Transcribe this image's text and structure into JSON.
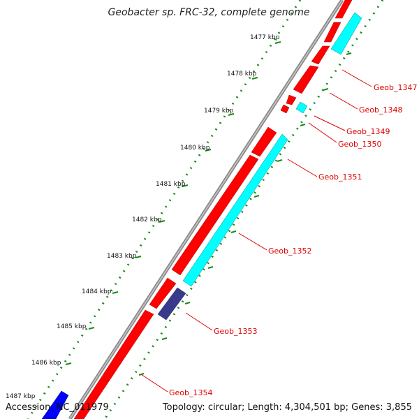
{
  "title": "Geobacter sp. FRC-32, complete genome",
  "footer": {
    "accession": "Accession: NC_011979",
    "summary": "Topology: circular; Length: 4,304,501 bp; Genes: 3,855"
  },
  "colors": {
    "forward_gene": "#ff0000",
    "reverse_gene_a": "#00ffff",
    "reverse_gene_b": "#3a3a8c",
    "edge_gene": "#0000ff",
    "backbone": "#8a8a8a",
    "tick_green": "#1a8a1a",
    "label_red": "#e00000"
  },
  "kbp_ticks": [
    {
      "label": "1477 kbp"
    },
    {
      "label": "1478 kbp"
    },
    {
      "label": "1479 kbp"
    },
    {
      "label": "1480 kbp"
    },
    {
      "label": "1481 kbp"
    },
    {
      "label": "1482 kbp"
    },
    {
      "label": "1483 kbp"
    },
    {
      "label": "1484 kbp"
    },
    {
      "label": "1485 kbp"
    },
    {
      "label": "1486 kbp"
    },
    {
      "label": "1487 kbp"
    }
  ],
  "gene_labels": [
    "Geob_1347",
    "Geob_1348",
    "Geob_1349",
    "Geob_1350",
    "Geob_1351",
    "Geob_1352",
    "Geob_1353",
    "Geob_1354"
  ]
}
